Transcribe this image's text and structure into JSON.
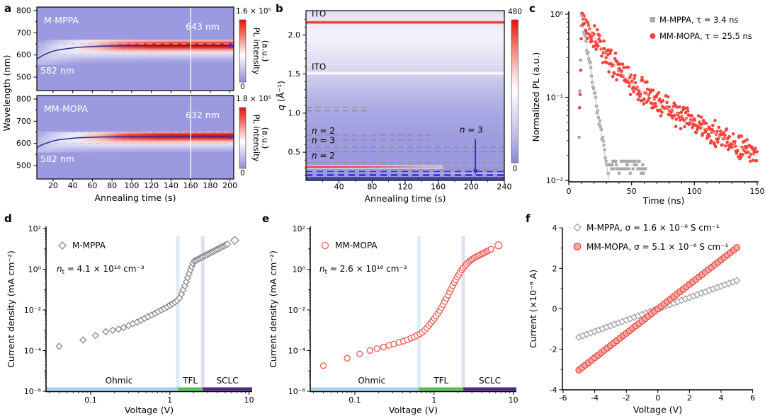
{
  "figure": {
    "background": "#ffffff",
    "panels": {
      "a": {
        "letter": "a"
      },
      "b": {
        "letter": "b"
      },
      "c": {
        "letter": "c"
      },
      "d": {
        "letter": "d"
      },
      "e": {
        "letter": "e"
      },
      "f": {
        "letter": "f"
      }
    }
  },
  "colors": {
    "heatmap_bg": "#9b99e0",
    "band_red": "#e8150e",
    "band_deep_red": "#d40d05",
    "curve_navy": "#2e2a9b",
    "dash_gray_a": "#c9c9c9",
    "dash_gray_b": "#8c8c8c",
    "blue_dash": "#2b28d4",
    "dark_strip": "#4247a5",
    "ito_red": "#ee2e22",
    "ohmic_bar": "#a9cfe6",
    "tfl_bar": "#58c05a",
    "sclc_bar": "#4f2b80",
    "tfl_line_blue": "#d9eaf6",
    "tfl_line_purple": "#e2d8ec",
    "gray_series": "#8a8a8a",
    "red_series": "#f2594f",
    "c_gray": "#a9a9a9",
    "c_gray_fit": "#c6c6c6",
    "c_red": "#f5423b",
    "c_red_fit": "#ffb3aa",
    "f_diamond_stroke": "#9a9a9a",
    "f_circle_stroke": "#e4473d",
    "f_circle_fill": "#f9a8a2"
  },
  "chart_data": {
    "a": {
      "type": "heatmap",
      "xlabel": "Annealing time (s)",
      "ylabel": "Wavelength (nm)",
      "x_ticks": [
        20,
        40,
        60,
        80,
        100,
        120,
        140,
        160,
        180,
        200
      ],
      "y_ticks": [
        800,
        700,
        600,
        500
      ],
      "y_minor_ticks": [
        750,
        650,
        550
      ],
      "time_range": [
        0,
        205
      ],
      "colorbar_label_lines": [
        "PL intensity",
        "(a.u.)"
      ],
      "subpanels": [
        {
          "name": "M-MPPA",
          "start_label": "582 nm",
          "peak_label": "643 nm",
          "cbar_max": "1.6 × 10⁵",
          "cbar_min": "0",
          "dashed_wavelengths": [
            650,
            600
          ],
          "vline_time": 160,
          "final_wavelength": 643,
          "curve": [
            [
              3.5,
              580
            ],
            [
              6,
              589
            ],
            [
              10,
              599
            ],
            [
              15,
              609
            ],
            [
              20,
              617
            ],
            [
              27,
              624
            ],
            [
              35,
              629
            ],
            [
              45,
              634
            ],
            [
              55,
              637
            ],
            [
              70,
              639.5
            ],
            [
              90,
              641
            ],
            [
              110,
              642
            ],
            [
              140,
              642.5
            ],
            [
              170,
              643
            ],
            [
              205,
              643
            ]
          ]
        },
        {
          "name": "MM-MOPA",
          "start_label": "582 nm",
          "peak_label": "632 nm",
          "cbar_max": "1.8 × 10⁵",
          "cbar_min": "0",
          "dashed_wavelengths": [
            650,
            600
          ],
          "vline_time": 160,
          "final_wavelength": 632,
          "curve": [
            [
              3.5,
              580
            ],
            [
              6,
              588
            ],
            [
              10,
              596
            ],
            [
              15,
              604
            ],
            [
              20,
              611
            ],
            [
              27,
              617
            ],
            [
              35,
              621
            ],
            [
              45,
              625
            ],
            [
              55,
              627
            ],
            [
              70,
              629
            ],
            [
              90,
              630
            ],
            [
              110,
              631
            ],
            [
              140,
              631.5
            ],
            [
              170,
              632
            ],
            [
              205,
              632
            ]
          ]
        }
      ]
    },
    "b": {
      "type": "heatmap",
      "xlabel": "Annealing time (s)",
      "ylabel_parts": [
        {
          "t": "q",
          "it": true
        },
        {
          "t": " (Å⁻¹)"
        }
      ],
      "x_ticks": [
        40,
        80,
        120,
        160,
        200,
        240
      ],
      "y_ticks": [
        "0.5",
        "1.0",
        "1.5",
        "2.0"
      ],
      "q_range": [
        0.14,
        2.31
      ],
      "time_range": [
        0,
        240
      ],
      "cbar_max": "480",
      "cbar_min": "0",
      "labels": [
        {
          "parts": [
            {
              "t": "ITO"
            }
          ],
          "q": 2.235
        },
        {
          "parts": [
            {
              "t": "ITO"
            }
          ],
          "q": 1.555
        },
        {
          "parts": [
            {
              "t": "n",
              "it": true
            },
            {
              "t": " = 2"
            }
          ],
          "q": 0.735
        },
        {
          "parts": [
            {
              "t": "n",
              "it": true
            },
            {
              "t": " = 3"
            }
          ],
          "q": 0.615
        },
        {
          "parts": [
            {
              "t": "n",
              "it": true
            },
            {
              "t": " = 2"
            }
          ],
          "q": 0.42
        }
      ],
      "solid_lines": [
        {
          "q": 2.16,
          "style": "red"
        },
        {
          "q": 1.51,
          "style": "white"
        },
        {
          "q": 0.312,
          "style": "red-fade"
        },
        {
          "q": 0.23,
          "style": "pink-right"
        }
      ],
      "gray_dashes": [
        {
          "q": 1.074,
          "t": [
            0,
            76
          ]
        },
        {
          "q": 1.029,
          "t": [
            0,
            74
          ]
        },
        {
          "q": 0.719,
          "t": [
            0,
            152
          ]
        },
        {
          "q": 0.653,
          "t": [
            0,
            148
          ]
        },
        {
          "q": 0.562,
          "t": [
            0,
            240
          ]
        },
        {
          "q": 0.508,
          "t": [
            0,
            240
          ]
        },
        {
          "q": 0.366,
          "t": [
            0,
            240
          ]
        },
        {
          "q": 0.276,
          "t": [
            92,
            240
          ]
        }
      ],
      "blue_dashes": [
        {
          "q": 0.253,
          "w": 1.3
        },
        {
          "q": 0.208,
          "w": 2.4
        }
      ],
      "arrow": {
        "t": 205,
        "q_from": 0.673,
        "q_to": 0.217,
        "label_parts": [
          {
            "t": "n",
            "it": true
          },
          {
            "t": " = 3"
          }
        ],
        "label_t": 200,
        "label_q": 0.75
      },
      "dark_strip_q": 0.185,
      "white_streak_q": [
        1.93,
        1.8,
        1.62
      ]
    },
    "c": {
      "type": "scatter-decay",
      "xlabel": "Time (ns)",
      "ylabel": "Normalized PL (a.u.)",
      "x_ticks": [
        0,
        50,
        100,
        150
      ],
      "y_tick_labels": [
        "10⁰",
        "10⁻¹",
        "10⁻²"
      ],
      "xlim": [
        0,
        150
      ],
      "ylim_exp": [
        -2,
        0
      ],
      "legend_position": "top-right",
      "series": [
        {
          "name": "M-MPPA",
          "legend": "M-MPPA, τ = 3.4 ns",
          "tau_ns": 3.4,
          "marker": "square",
          "color": "#a9a9a9",
          "fit_color": "#c6c6c6",
          "t0": 10,
          "rise_rate": 1.8,
          "components": [
            {
              "A": 1,
              "tau": 4.8
            }
          ],
          "floor": 0.0122,
          "noise": 0.18,
          "t_start": 8.2,
          "t_end": 61,
          "step": 0.55,
          "seed": 7
        },
        {
          "name": "MM-MOPA",
          "legend": "MM-MOPA, τ = 25.5 ns",
          "tau_ns": 25.5,
          "marker": "circle",
          "color": "#f5423b",
          "fit_color": "#ffb3aa",
          "t0": 10.2,
          "rise_rate": 1.6,
          "components": [
            {
              "A": 0.75,
              "tau": 12
            },
            {
              "A": 0.25,
              "tau": 55
            }
          ],
          "floor": 0,
          "noise": 0.42,
          "t_start": 8.6,
          "t_end": 150,
          "step": 0.44,
          "seed": 13
        }
      ]
    },
    "d": {
      "type": "scatter-loglog",
      "xlabel": "Voltage (V)",
      "ylabel": "Current density (mA cm⁻²)",
      "x_tick_labels": [
        "0.1",
        "1",
        "10"
      ],
      "y_tick_labels": [
        "10²",
        "10⁰",
        "10⁻²",
        "10⁻⁴",
        "10⁻⁶"
      ],
      "legend": "M-MPPA",
      "annotation_parts": [
        {
          "t": "n",
          "it": true
        },
        {
          "t": "t",
          "sub": true
        },
        {
          "t": " = 4.1 × 10¹⁶ cm⁻³"
        }
      ],
      "regions": [
        "Ohmic",
        "TFL",
        "SCLC"
      ],
      "v_tfl": [
        1.26,
        2.6
      ],
      "marker": "diamond",
      "color": "#8a8a8a",
      "points": [
        [
          0.04,
          0.00016
        ],
        [
          0.08,
          0.00033
        ],
        [
          0.115,
          0.00055
        ],
        [
          0.155,
          0.00085
        ],
        [
          0.19,
          0.001
        ],
        [
          0.225,
          0.00112
        ],
        [
          0.26,
          0.00135
        ],
        [
          0.3,
          0.0017
        ],
        [
          0.34,
          0.0021
        ],
        [
          0.385,
          0.0025
        ],
        [
          0.43,
          0.0031
        ],
        [
          0.48,
          0.0038
        ],
        [
          0.53,
          0.0046
        ],
        [
          0.59,
          0.0056
        ],
        [
          0.65,
          0.0068
        ],
        [
          0.71,
          0.0082
        ],
        [
          0.78,
          0.0098
        ],
        [
          0.85,
          0.0117
        ],
        [
          0.93,
          0.014
        ],
        [
          1.0,
          0.017
        ],
        [
          1.08,
          0.02
        ],
        [
          1.16,
          0.024
        ],
        [
          1.24,
          0.029
        ],
        [
          1.32,
          0.038
        ],
        [
          1.4,
          0.06
        ],
        [
          1.47,
          0.095
        ],
        [
          1.54,
          0.15
        ],
        [
          1.61,
          0.24
        ],
        [
          1.68,
          0.38
        ],
        [
          1.75,
          0.6
        ],
        [
          1.82,
          0.92
        ],
        [
          1.89,
          1.35
        ],
        [
          1.96,
          1.9
        ],
        [
          2.03,
          2.5
        ],
        [
          2.1,
          2.65
        ],
        [
          2.2,
          2.9
        ],
        [
          2.3,
          3.2
        ],
        [
          2.4,
          3.5
        ],
        [
          2.52,
          3.8
        ],
        [
          2.64,
          4.2
        ],
        [
          2.77,
          4.6
        ],
        [
          2.9,
          5.0
        ],
        [
          3.04,
          5.5
        ],
        [
          3.19,
          6.1
        ],
        [
          3.34,
          6.7
        ],
        [
          3.5,
          7.3
        ],
        [
          3.67,
          8.1
        ],
        [
          3.85,
          8.9
        ],
        [
          4.03,
          9.7
        ],
        [
          4.23,
          10.7
        ],
        [
          4.43,
          11.8
        ],
        [
          4.64,
          12.9
        ],
        [
          4.87,
          14.2
        ],
        [
          5.1,
          15.6
        ],
        [
          5.35,
          17.2
        ],
        [
          6.6,
          26
        ]
      ]
    },
    "e": {
      "type": "scatter-loglog",
      "xlabel": "Voltage (V)",
      "ylabel": "Current density (mA cm⁻²)",
      "x_tick_labels": [
        "0.1",
        "1",
        "10"
      ],
      "y_tick_labels": [
        "10²",
        "10⁰",
        "10⁻²",
        "10⁻⁴",
        "10⁻⁶"
      ],
      "legend": "MM-MOPA",
      "annotation_parts": [
        {
          "t": "n",
          "it": true
        },
        {
          "t": "t",
          "sub": true
        },
        {
          "t": " = 2.6 × 10¹⁶ cm⁻³"
        }
      ],
      "regions": [
        "Ohmic",
        "TFL",
        "SCLC"
      ],
      "v_tfl": [
        0.645,
        2.34
      ],
      "marker": "circle",
      "color": "#f2594f",
      "points": [
        [
          0.04,
          1.8e-05
        ],
        [
          0.08,
          4.2e-05
        ],
        [
          0.115,
          6.8e-05
        ],
        [
          0.155,
          0.0001
        ],
        [
          0.19,
          0.000125
        ],
        [
          0.23,
          0.00015
        ],
        [
          0.27,
          0.00018
        ],
        [
          0.31,
          0.00021
        ],
        [
          0.36,
          0.00025
        ],
        [
          0.41,
          0.00029
        ],
        [
          0.46,
          0.00034
        ],
        [
          0.51,
          0.0004
        ],
        [
          0.56,
          0.00047
        ],
        [
          0.61,
          0.00056
        ],
        [
          0.66,
          0.00066
        ],
        [
          0.71,
          0.0008
        ],
        [
          0.76,
          0.001
        ],
        [
          0.81,
          0.0013
        ],
        [
          0.86,
          0.0017
        ],
        [
          0.91,
          0.0022
        ],
        [
          0.96,
          0.0029
        ],
        [
          1.01,
          0.0038
        ],
        [
          1.06,
          0.005
        ],
        [
          1.12,
          0.0068
        ],
        [
          1.18,
          0.0093
        ],
        [
          1.24,
          0.013
        ],
        [
          1.3,
          0.018
        ],
        [
          1.36,
          0.026
        ],
        [
          1.43,
          0.037
        ],
        [
          1.5,
          0.053
        ],
        [
          1.57,
          0.076
        ],
        [
          1.64,
          0.108
        ],
        [
          1.72,
          0.155
        ],
        [
          1.8,
          0.22
        ],
        [
          1.88,
          0.3
        ],
        [
          1.96,
          0.41
        ],
        [
          2.05,
          0.55
        ],
        [
          2.14,
          0.72
        ],
        [
          2.24,
          0.93
        ],
        [
          2.34,
          1.17
        ],
        [
          2.45,
          1.45
        ],
        [
          2.56,
          1.75
        ],
        [
          2.68,
          2.1
        ],
        [
          2.8,
          2.45
        ],
        [
          2.93,
          2.85
        ],
        [
          3.06,
          3.2
        ],
        [
          3.2,
          3.6
        ],
        [
          3.35,
          3.95
        ],
        [
          3.5,
          4.3
        ],
        [
          3.66,
          4.7
        ],
        [
          3.83,
          5.15
        ],
        [
          4.01,
          5.6
        ],
        [
          4.19,
          6.1
        ],
        [
          4.38,
          6.7
        ],
        [
          4.58,
          7.3
        ],
        [
          4.79,
          8.0
        ],
        [
          5.01,
          8.8
        ],
        [
          5.24,
          9.6
        ],
        [
          6.5,
          14.8
        ]
      ]
    },
    "f": {
      "type": "scatter-linear",
      "xlabel": "Voltage (V)",
      "ylabel": "Current (×10⁻⁹ A)",
      "x_ticks": [
        -6,
        -4,
        -2,
        0,
        2,
        4,
        6
      ],
      "y_ticks": [
        4,
        2,
        0,
        -2,
        -4
      ],
      "xlim": [
        -6,
        6
      ],
      "ylim": [
        -4,
        4
      ],
      "series": [
        {
          "name": "M-MPPA",
          "legend": "M-MPPA, σ = 1.6 × 10⁻⁶ S cm⁻¹",
          "marker": "diamond",
          "stroke": "#9a9a9a",
          "fill": "#ffffff",
          "slope": 0.28,
          "v_min": -5,
          "v_max": 5,
          "step": 0.25
        },
        {
          "name": "MM-MOPA",
          "legend": "MM-MOPA, σ = 5.1 × 10⁻⁶ S cm⁻¹",
          "marker": "circle",
          "stroke": "#e4473d",
          "fill": "#f9a8a2",
          "slope": 0.605,
          "v_min": -5,
          "v_max": 5,
          "step": 0.2
        }
      ]
    }
  }
}
